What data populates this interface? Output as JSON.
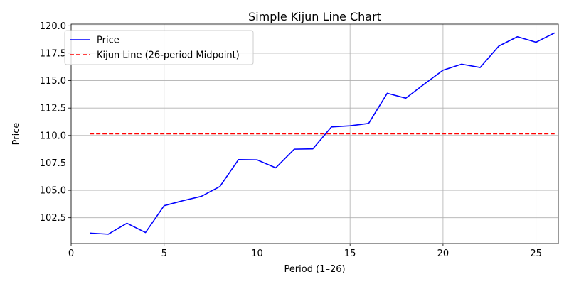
{
  "chart_data": {
    "type": "line",
    "title": "Simple Kijun Line Chart",
    "xlabel": "Period (1–26)",
    "ylabel": "Price",
    "xlim": [
      0.0,
      26.2
    ],
    "ylim": [
      100.15,
      120.15
    ],
    "grid": true,
    "legend_position": "top-left",
    "x_ticks": [
      0,
      5,
      10,
      15,
      20,
      25
    ],
    "y_ticks": [
      102.5,
      105.0,
      107.5,
      110.0,
      112.5,
      115.0,
      117.5,
      120.0
    ],
    "x_tick_labels": [
      "0",
      "5",
      "10",
      "15",
      "20",
      "25"
    ],
    "y_tick_labels": [
      "102.5",
      "105.0",
      "107.5",
      "110.0",
      "112.5",
      "115.0",
      "117.5",
      "120.0"
    ],
    "x": [
      1,
      2,
      3,
      4,
      5,
      6,
      7,
      8,
      9,
      10,
      11,
      12,
      13,
      14,
      15,
      16,
      17,
      18,
      19,
      20,
      21,
      22,
      23,
      24,
      25,
      26
    ],
    "series": [
      {
        "name": "Price",
        "color": "#0000ff",
        "style": "solid",
        "values": [
          101.1,
          101.0,
          102.0,
          101.15,
          103.6,
          104.05,
          104.45,
          105.35,
          107.8,
          107.78,
          107.05,
          108.75,
          108.78,
          110.78,
          110.88,
          111.1,
          113.85,
          113.4,
          114.7,
          115.95,
          116.5,
          116.2,
          118.15,
          119.0,
          118.5,
          119.35
        ]
      },
      {
        "name": "Kijun Line (26-period Midpoint)",
        "color": "#ff0000",
        "style": "dashed",
        "values": [
          110.15,
          110.15,
          110.15,
          110.15,
          110.15,
          110.15,
          110.15,
          110.15,
          110.15,
          110.15,
          110.15,
          110.15,
          110.15,
          110.15,
          110.15,
          110.15,
          110.15,
          110.15,
          110.15,
          110.15,
          110.15,
          110.15,
          110.15,
          110.15,
          110.15,
          110.15
        ]
      }
    ]
  }
}
